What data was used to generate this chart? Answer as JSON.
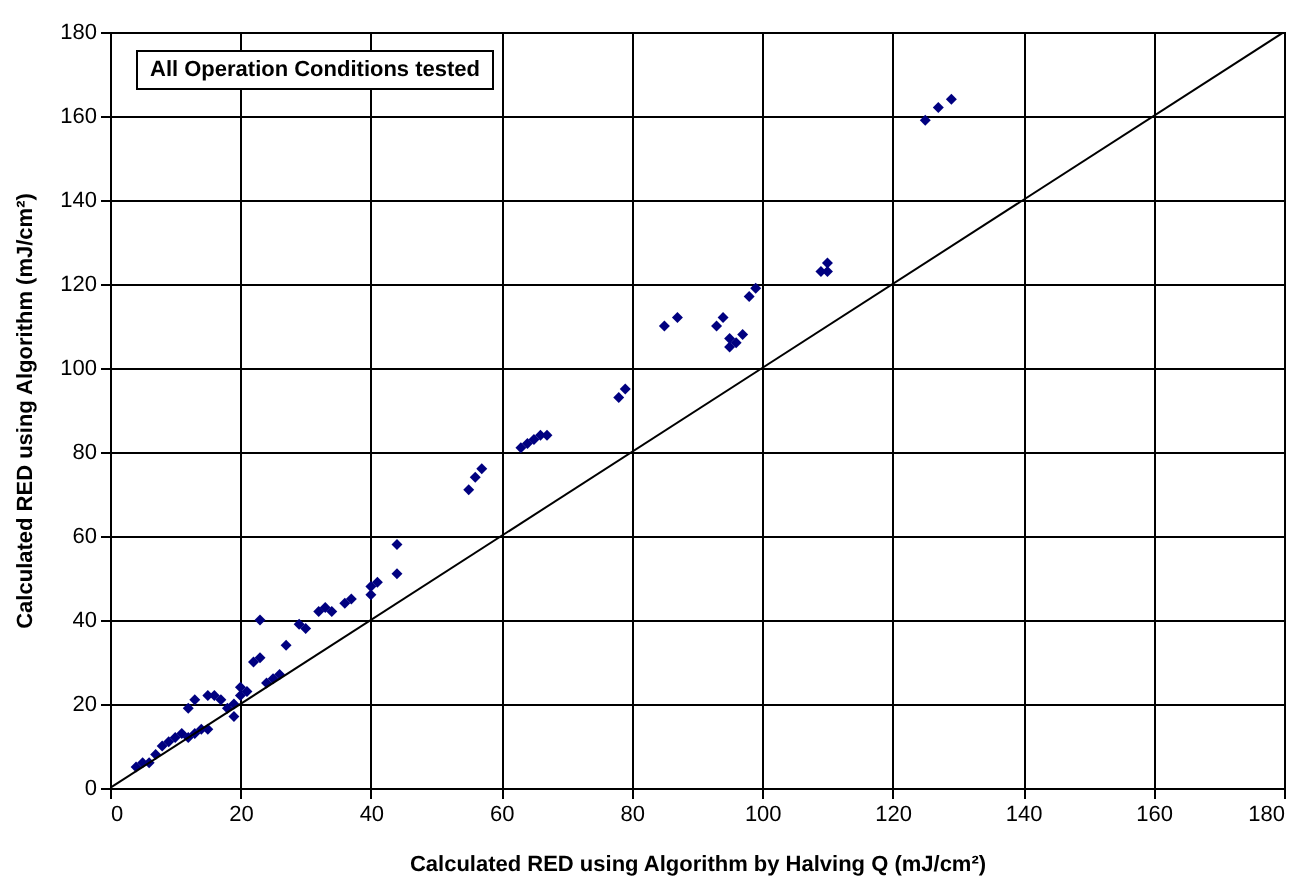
{
  "chart_data": {
    "type": "scatter",
    "xlabel": "Calculated RED using Algorithm by Halving Q (mJ/cm²)",
    "ylabel": "Calculated RED using Algorithm (mJ/cm²)",
    "annotations": [
      "All Operation Conditions tested"
    ],
    "xlim": [
      0,
      180
    ],
    "ylim": [
      0,
      180
    ],
    "xticks": [
      0,
      20,
      40,
      60,
      80,
      100,
      120,
      140,
      160,
      180
    ],
    "yticks": [
      0,
      20,
      40,
      60,
      80,
      100,
      120,
      140,
      160,
      180
    ],
    "grid": true,
    "marker": "diamond",
    "series": [
      {
        "color": "#000080",
        "x": [
          4,
          5,
          6,
          7,
          8,
          9,
          10,
          11,
          12,
          13,
          14,
          15,
          12,
          13,
          15,
          17,
          18,
          19,
          20,
          20,
          21,
          16,
          19,
          22,
          23,
          23,
          24,
          25,
          26,
          27,
          29,
          30,
          32,
          33,
          34,
          36,
          37,
          40,
          41,
          40,
          44,
          44,
          55,
          56,
          57,
          63,
          64,
          65,
          66,
          67,
          78,
          79,
          85,
          87,
          93,
          94,
          95,
          96,
          97,
          95,
          98,
          99,
          109,
          110,
          110,
          125,
          127,
          129
        ],
        "values": [
          5,
          6,
          6,
          8,
          10,
          11,
          12,
          13,
          12,
          13,
          14,
          14,
          19,
          21,
          22,
          21,
          19,
          20,
          22,
          24,
          23,
          22,
          17,
          30,
          31,
          40,
          25,
          26,
          27,
          34,
          39,
          38,
          42,
          43,
          42,
          44,
          45,
          48,
          49,
          46,
          58,
          51,
          71,
          74,
          76,
          81,
          82,
          83,
          84,
          84,
          93,
          95,
          110,
          112,
          110,
          112,
          105,
          106,
          108,
          107,
          117,
          119,
          123,
          125,
          123,
          159,
          162,
          164
        ]
      },
      {
        "type": "line",
        "marker": "none",
        "color": "#000000",
        "x": [
          0,
          180
        ],
        "values": [
          0,
          180
        ]
      }
    ]
  }
}
